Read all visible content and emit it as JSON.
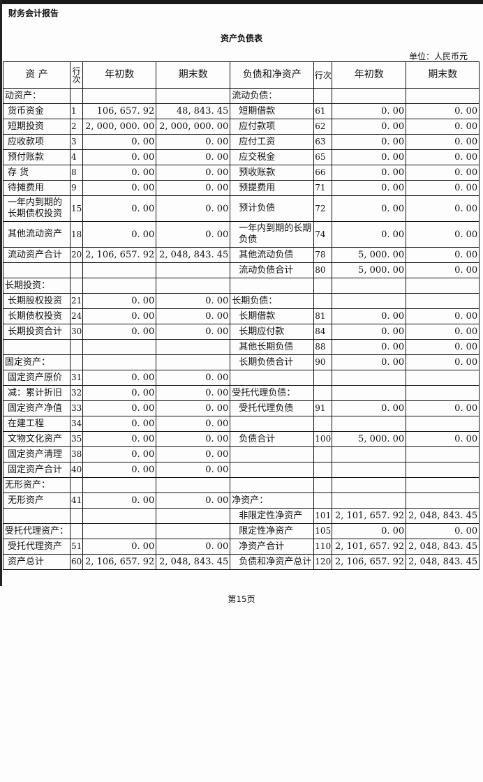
{
  "report_name": "财务会计报告",
  "title": "资产负债表",
  "unit": "单位：人民币元",
  "headers": [
    "资 产",
    "行次",
    "年初数",
    "期末数",
    "负债和净资产",
    "行次",
    "年初数",
    "期末数"
  ],
  "rows": [
    {
      "a": [
        "动资产：",
        "",
        "",
        ""
      ],
      "b": [
        "流动负债：",
        "",
        "",
        ""
      ]
    },
    {
      "a": [
        "货币资金",
        "1",
        "106, 657. 92",
        "48, 843. 45"
      ],
      "b": [
        "短期借款",
        "61",
        "0. 00",
        "0. 00"
      ]
    },
    {
      "a": [
        "短期投资",
        "2",
        "2, 000, 000. 00",
        "2, 000, 000. 00"
      ],
      "b": [
        "应付款项",
        "62",
        "0. 00",
        "0. 00"
      ]
    },
    {
      "a": [
        "应收款项",
        "3",
        "0. 00",
        "0. 00"
      ],
      "b": [
        "应付工资",
        "63",
        "0. 00",
        "0. 00"
      ]
    },
    {
      "a": [
        "预付账款",
        "4",
        "0. 00",
        "0. 00"
      ],
      "b": [
        "应交税金",
        "65",
        "0. 00",
        "0. 00"
      ]
    },
    {
      "a": [
        "存 货",
        "8",
        "0. 00",
        "0. 00"
      ],
      "b": [
        "预收账款",
        "66",
        "0. 00",
        "0. 00"
      ]
    },
    {
      "a": [
        "待摊费用",
        "9",
        "0. 00",
        "0. 00"
      ],
      "b": [
        "预提费用",
        "71",
        "0. 00",
        "0. 00"
      ]
    },
    {
      "tall": true,
      "a": [
        "一年内到期的长期债权投资",
        "15",
        "0. 00",
        "0. 00"
      ],
      "b": [
        "预计负债",
        "72",
        "0. 00",
        "0. 00"
      ]
    },
    {
      "tall": true,
      "a": [
        "其他流动资产",
        "18",
        "0. 00",
        "0. 00"
      ],
      "b": [
        "一年内到期的长期负债",
        "74",
        "0. 00",
        "0. 00"
      ]
    },
    {
      "a": [
        "流动资产合计",
        "20",
        "2, 106, 657. 92",
        "2, 048, 843. 45"
      ],
      "b": [
        "其他流动负债",
        "78",
        "5, 000. 00",
        "0. 00"
      ]
    },
    {
      "a": [
        "",
        "",
        "",
        ""
      ],
      "b": [
        "流动负债合计",
        "80",
        "5, 000. 00",
        "0. 00"
      ]
    },
    {
      "a": [
        "长期投资：",
        "",
        "",
        ""
      ],
      "b": [
        "",
        "",
        "",
        ""
      ]
    },
    {
      "a": [
        "长期股权投资",
        "21",
        "0. 00",
        "0. 00"
      ],
      "b": [
        "长期负债：",
        "",
        "",
        ""
      ]
    },
    {
      "a": [
        "长期债权投资",
        "24",
        "0. 00",
        "0. 00"
      ],
      "b": [
        "长期借款",
        "81",
        "0. 00",
        "0. 00"
      ]
    },
    {
      "a": [
        "长期投资合计",
        "30",
        "0. 00",
        "0. 00"
      ],
      "b": [
        "长期应付款",
        "84",
        "0. 00",
        "0. 00"
      ]
    },
    {
      "a": [
        "",
        "",
        "",
        ""
      ],
      "b": [
        "其他长期负债",
        "88",
        "0. 00",
        "0. 00"
      ]
    },
    {
      "a": [
        "固定资产：",
        "",
        "",
        ""
      ],
      "b": [
        "长期负债合计",
        "90",
        "0. 00",
        "0. 00"
      ]
    },
    {
      "a": [
        "固定资产原价",
        "31",
        "0. 00",
        "0. 00"
      ],
      "b": [
        "",
        "",
        "",
        ""
      ]
    },
    {
      "a": [
        "减：累计折旧",
        "32",
        "0. 00",
        "0. 00"
      ],
      "b": [
        "受托代理负债：",
        "",
        "",
        ""
      ]
    },
    {
      "a": [
        "固定资产净值",
        "33",
        "0. 00",
        "0. 00"
      ],
      "b": [
        "受托代理负债",
        "91",
        "0. 00",
        "0. 00"
      ]
    },
    {
      "a": [
        "在建工程",
        "34",
        "0. 00",
        "0. 00"
      ],
      "b": [
        "",
        "",
        "",
        ""
      ]
    },
    {
      "a": [
        "文物文化资产",
        "35",
        "0. 00",
        "0. 00"
      ],
      "b": [
        "负债合计",
        "100",
        "5, 000. 00",
        "0. 00"
      ]
    },
    {
      "a": [
        "固定资产清理",
        "38",
        "0. 00",
        "0. 00"
      ],
      "b": [
        "",
        "",
        "",
        ""
      ]
    },
    {
      "a": [
        "固定资产合计",
        "40",
        "0. 00",
        "0. 00"
      ],
      "b": [
        "",
        "",
        "",
        ""
      ]
    },
    {
      "a": [
        "无形资产：",
        "",
        "",
        ""
      ],
      "b": [
        "",
        "",
        "",
        ""
      ]
    },
    {
      "a": [
        "无形资产",
        "41",
        "0. 00",
        "0. 00"
      ],
      "b": [
        "净资产：",
        "",
        "",
        ""
      ]
    },
    {
      "a": [
        "",
        "",
        "",
        ""
      ],
      "b": [
        "非限定性净资产",
        "101",
        "2, 101, 657. 92",
        "2, 048, 843. 45"
      ]
    },
    {
      "a": [
        "受托代理资产：",
        "",
        "",
        ""
      ],
      "b": [
        "限定性净资产",
        "105",
        "0. 00",
        "0. 00"
      ]
    },
    {
      "a": [
        "受托代理资产",
        "51",
        "0. 00",
        "0. 00"
      ],
      "b": [
        "净资产合计",
        "110",
        "2, 101, 657. 92",
        "2, 048, 843. 45"
      ]
    },
    {
      "a": [
        "资产总计",
        "60",
        "2, 106, 657. 92",
        "2, 048, 843. 45"
      ],
      "b": [
        "负债和净资产总计",
        "120",
        "2, 106, 657. 92",
        "2, 048, 843. 45"
      ]
    }
  ],
  "footer": "第15页"
}
